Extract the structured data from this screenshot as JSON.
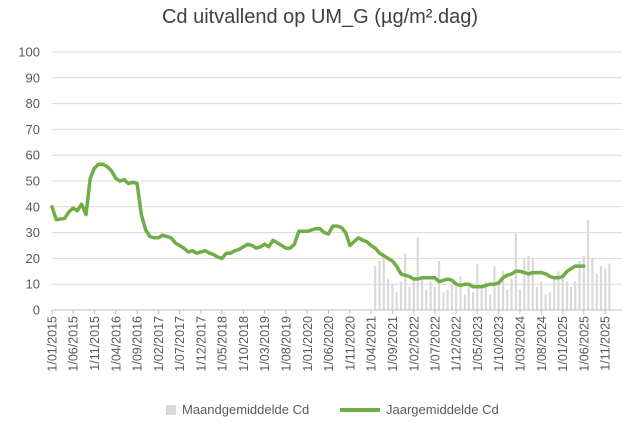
{
  "chart_data": {
    "type": "bar+line",
    "title": "Cd uitvallend op UM_G (µg/m².dag)",
    "ylim": [
      0,
      100
    ],
    "yticks": [
      0,
      10,
      20,
      30,
      40,
      50,
      60,
      70,
      80,
      90,
      100
    ],
    "grid": "horizontal",
    "legend_position": "bottom",
    "x_start": "1/01/2015",
    "x_end": "1/03/2026",
    "x_tick_labels": [
      "1/01/2015",
      "1/06/2015",
      "1/11/2015",
      "1/04/2016",
      "1/09/2016",
      "1/02/2017",
      "1/07/2017",
      "1/12/2017",
      "1/05/2018",
      "1/10/2018",
      "1/03/2019",
      "1/08/2019",
      "1/01/2020",
      "1/06/2020",
      "1/11/2020",
      "1/04/2021",
      "1/09/2021",
      "1/02/2022",
      "1/07/2022",
      "1/12/2022",
      "1/05/2023",
      "1/10/2023",
      "1/03/2024",
      "1/08/2024",
      "1/01/2025",
      "1/06/2025",
      "1/11/2025"
    ],
    "series": [
      {
        "name": "Maandgemiddelde Cd",
        "kind": "bar",
        "color": "#d9d9d9",
        "points": [
          [
            "2021-05-01",
            17
          ],
          [
            "2021-06-01",
            19
          ],
          [
            "2021-07-01",
            20
          ],
          [
            "2021-08-01",
            12
          ],
          [
            "2021-09-01",
            10
          ],
          [
            "2021-10-01",
            7
          ],
          [
            "2021-11-01",
            11
          ],
          [
            "2021-12-01",
            22
          ],
          [
            "2022-01-01",
            9
          ],
          [
            "2022-02-01",
            12
          ],
          [
            "2022-03-01",
            28
          ],
          [
            "2022-04-01",
            13
          ],
          [
            "2022-05-01",
            8
          ],
          [
            "2022-06-01",
            11
          ],
          [
            "2022-07-01",
            9
          ],
          [
            "2022-08-01",
            19
          ],
          [
            "2022-09-01",
            7
          ],
          [
            "2022-10-01",
            8
          ],
          [
            "2022-11-01",
            10
          ],
          [
            "2022-12-01",
            9
          ],
          [
            "2023-01-01",
            13
          ],
          [
            "2023-02-01",
            6
          ],
          [
            "2023-03-01",
            9
          ],
          [
            "2023-04-01",
            7
          ],
          [
            "2023-05-01",
            18
          ],
          [
            "2023-06-01",
            8
          ],
          [
            "2023-07-01",
            11
          ],
          [
            "2023-08-01",
            6
          ],
          [
            "2023-09-01",
            17
          ],
          [
            "2023-10-01",
            10
          ],
          [
            "2023-11-01",
            15
          ],
          [
            "2023-12-01",
            8
          ],
          [
            "2024-01-01",
            12
          ],
          [
            "2024-02-01",
            30
          ],
          [
            "2024-03-01",
            8
          ],
          [
            "2024-04-01",
            20
          ],
          [
            "2024-05-01",
            21
          ],
          [
            "2024-06-01",
            20
          ],
          [
            "2024-07-01",
            9
          ],
          [
            "2024-08-01",
            11
          ],
          [
            "2024-09-01",
            6
          ],
          [
            "2024-10-01",
            7
          ],
          [
            "2024-11-01",
            12
          ],
          [
            "2024-12-01",
            15
          ],
          [
            "2025-01-01",
            13
          ],
          [
            "2025-02-01",
            11
          ],
          [
            "2025-03-01",
            9
          ],
          [
            "2025-04-01",
            11
          ],
          [
            "2025-05-01",
            19
          ],
          [
            "2025-06-01",
            21
          ],
          [
            "2025-07-01",
            35
          ],
          [
            "2025-08-01",
            20
          ],
          [
            "2025-09-01",
            14
          ],
          [
            "2025-10-01",
            17
          ],
          [
            "2025-11-01",
            16
          ],
          [
            "2025-12-01",
            18
          ]
        ]
      },
      {
        "name": "Jaargemiddelde Cd",
        "kind": "line",
        "color": "#70ad47",
        "points": [
          [
            "2015-01-01",
            40
          ],
          [
            "2015-02-01",
            35
          ],
          [
            "2015-04-01",
            35.5
          ],
          [
            "2015-05-01",
            38
          ],
          [
            "2015-06-01",
            39.5
          ],
          [
            "2015-07-01",
            38.5
          ],
          [
            "2015-08-01",
            41
          ],
          [
            "2015-09-01",
            37
          ],
          [
            "2015-10-01",
            51
          ],
          [
            "2015-11-01",
            55
          ],
          [
            "2015-12-01",
            56.5
          ],
          [
            "2016-01-01",
            56.5
          ],
          [
            "2016-02-01",
            55.5
          ],
          [
            "2016-03-01",
            54
          ],
          [
            "2016-04-01",
            51
          ],
          [
            "2016-05-01",
            50
          ],
          [
            "2016-06-01",
            50.5
          ],
          [
            "2016-07-01",
            49
          ],
          [
            "2016-08-01",
            49.5
          ],
          [
            "2016-09-01",
            49
          ],
          [
            "2016-10-01",
            37
          ],
          [
            "2016-11-01",
            31
          ],
          [
            "2016-12-01",
            28.5
          ],
          [
            "2017-01-01",
            28
          ],
          [
            "2017-02-01",
            28
          ],
          [
            "2017-03-01",
            29
          ],
          [
            "2017-04-01",
            28.5
          ],
          [
            "2017-05-01",
            28
          ],
          [
            "2017-06-01",
            26
          ],
          [
            "2017-07-01",
            25
          ],
          [
            "2017-08-01",
            24
          ],
          [
            "2017-09-01",
            22.5
          ],
          [
            "2017-10-01",
            23
          ],
          [
            "2017-11-01",
            22
          ],
          [
            "2017-12-01",
            22.5
          ],
          [
            "2018-01-01",
            23
          ],
          [
            "2018-02-01",
            22
          ],
          [
            "2018-03-01",
            21.5
          ],
          [
            "2018-04-01",
            20.5
          ],
          [
            "2018-05-01",
            20
          ],
          [
            "2018-06-01",
            22
          ],
          [
            "2018-07-01",
            22
          ],
          [
            "2018-08-01",
            23
          ],
          [
            "2018-09-01",
            23.5
          ],
          [
            "2018-10-01",
            24.5
          ],
          [
            "2018-11-01",
            25.5
          ],
          [
            "2018-12-01",
            25
          ],
          [
            "2019-01-01",
            24
          ],
          [
            "2019-02-01",
            24.5
          ],
          [
            "2019-03-01",
            25.5
          ],
          [
            "2019-04-01",
            24.5
          ],
          [
            "2019-05-01",
            27
          ],
          [
            "2019-06-01",
            26
          ],
          [
            "2019-07-01",
            25
          ],
          [
            "2019-08-01",
            24
          ],
          [
            "2019-09-01",
            24
          ],
          [
            "2019-10-01",
            25.5
          ],
          [
            "2019-11-01",
            30.5
          ],
          [
            "2019-12-01",
            30.5
          ],
          [
            "2020-01-01",
            30.5
          ],
          [
            "2020-02-01",
            31
          ],
          [
            "2020-03-01",
            31.5
          ],
          [
            "2020-04-01",
            31.5
          ],
          [
            "2020-05-01",
            30
          ],
          [
            "2020-06-01",
            29.5
          ],
          [
            "2020-07-01",
            32.5
          ],
          [
            "2020-08-01",
            32.5
          ],
          [
            "2020-09-01",
            32
          ],
          [
            "2020-10-01",
            30
          ],
          [
            "2020-11-01",
            25
          ],
          [
            "2020-12-01",
            26.5
          ],
          [
            "2021-01-01",
            28
          ],
          [
            "2021-02-01",
            27
          ],
          [
            "2021-03-01",
            26.5
          ],
          [
            "2021-04-01",
            25
          ],
          [
            "2021-05-01",
            24
          ],
          [
            "2021-06-01",
            22
          ],
          [
            "2021-07-01",
            21
          ],
          [
            "2021-08-01",
            20
          ],
          [
            "2021-09-01",
            19
          ],
          [
            "2021-10-01",
            17
          ],
          [
            "2021-11-01",
            14
          ],
          [
            "2021-12-01",
            13.5
          ],
          [
            "2022-01-01",
            13
          ],
          [
            "2022-02-01",
            12
          ],
          [
            "2022-03-01",
            12
          ],
          [
            "2022-04-01",
            12.5
          ],
          [
            "2022-05-01",
            12.5
          ],
          [
            "2022-06-01",
            12.5
          ],
          [
            "2022-07-01",
            12.5
          ],
          [
            "2022-08-01",
            11
          ],
          [
            "2022-09-01",
            11.5
          ],
          [
            "2022-10-01",
            12
          ],
          [
            "2022-11-01",
            11.5
          ],
          [
            "2022-12-01",
            10
          ],
          [
            "2023-01-01",
            9.5
          ],
          [
            "2023-02-01",
            10
          ],
          [
            "2023-03-01",
            10
          ],
          [
            "2023-04-01",
            9
          ],
          [
            "2023-05-01",
            9
          ],
          [
            "2023-06-01",
            9
          ],
          [
            "2023-07-01",
            9.5
          ],
          [
            "2023-08-01",
            10
          ],
          [
            "2023-09-01",
            10
          ],
          [
            "2023-10-01",
            10.5
          ],
          [
            "2023-11-01",
            12.5
          ],
          [
            "2023-12-01",
            13.5
          ],
          [
            "2024-01-01",
            14
          ],
          [
            "2024-02-01",
            15
          ],
          [
            "2024-03-01",
            15
          ],
          [
            "2024-04-01",
            14.5
          ],
          [
            "2024-05-01",
            14
          ],
          [
            "2024-06-01",
            14.5
          ],
          [
            "2024-07-01",
            14.5
          ],
          [
            "2024-08-01",
            14.5
          ],
          [
            "2024-09-01",
            14
          ],
          [
            "2024-10-01",
            13
          ],
          [
            "2024-11-01",
            12.5
          ],
          [
            "2024-12-01",
            12.5
          ],
          [
            "2025-01-01",
            13
          ],
          [
            "2025-02-01",
            15
          ],
          [
            "2025-03-01",
            16
          ],
          [
            "2025-04-01",
            17
          ],
          [
            "2025-05-01",
            17
          ],
          [
            "2025-06-01",
            17
          ]
        ]
      }
    ]
  }
}
